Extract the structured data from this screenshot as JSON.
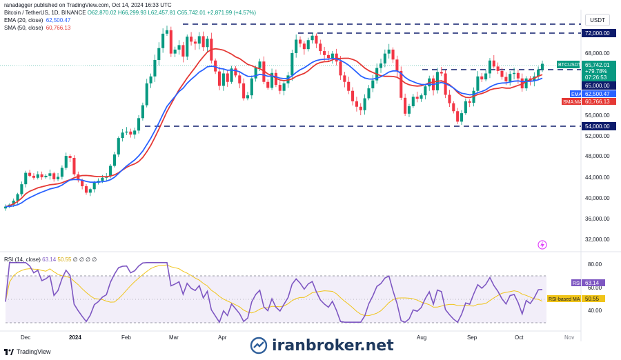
{
  "header": {
    "published": "ranadagger published on TradingView.com, Oct 14, 2024 16:33 UTC"
  },
  "legend": {
    "symbol": "Bitcoin / TetherUS, 1D, BINANCE",
    "open": "O62,870.02",
    "high": "H66,299.93",
    "low": "L62,457.81",
    "close": "C65,742.01",
    "change": "+2,871.99 (+4.57%)",
    "ema_label": "EMA (20, close)",
    "ema_value": "62,500.47",
    "sma_label": "SMA (50, close)",
    "sma_value": "60,766.13",
    "rsi_label": "RSI (14, close)",
    "rsi_value": "63.14",
    "rsi_ma_value": "50.55",
    "rsi_zeros": "∅ ∅ ∅ ∅"
  },
  "price_axis": {
    "unit": "USDT",
    "ticks": [
      "72,000.00",
      "68,000.00",
      "65,000.00",
      "60,000.00",
      "56,000.00",
      "54,000.00",
      "52,000.00",
      "48,000.00",
      "44,000.00",
      "40,000.00",
      "36,000.00",
      "32,000.00"
    ]
  },
  "rsi_axis": {
    "ticks": [
      "80.00",
      "60.00",
      "40.00"
    ]
  },
  "badges": {
    "symbol": "BTCUSDT",
    "price": "65,742.01",
    "change": "+79.78%",
    "countdown": "07:26:53",
    "level_65": "65,000.00",
    "ema_tag": "EMA",
    "ema_price": "62,500.47",
    "sma_tag": "SMA:MA",
    "sma_price": "60,766.13",
    "level_72": "72,000.00",
    "level_54": "54,000.00",
    "rsi_tag": "RSI",
    "rsi_val": "63.14",
    "rsima_tag": "RSI-based MA",
    "rsima_val": "50.55"
  },
  "time_axis": [
    "Dec",
    "2024",
    "Feb",
    "Mar",
    "Apr",
    "Aug",
    "Sep",
    "Oct",
    "Nov"
  ],
  "footer": {
    "brand": "TradingView"
  },
  "watermark": {
    "text": "iranbroker.net"
  },
  "colors": {
    "up": "#089981",
    "down": "#f23645",
    "ema": "#2962ff",
    "sma": "#e53935",
    "rsi": "#7e57c2",
    "rsi_ma": "#f0c419",
    "level": "#0d1b6b"
  },
  "chart_data": {
    "type": "candlestick",
    "title": "Bitcoin / TetherUS, 1D, BINANCE",
    "ylim": [
      30000,
      76000
    ],
    "levels": [
      72000,
      65000,
      54000
    ],
    "close_series": [
      37000,
      37400,
      38200,
      39500,
      41500,
      43800,
      43200,
      42800,
      43500,
      42900,
      43200,
      43700,
      42500,
      43000,
      44800,
      47200,
      46800,
      43500,
      42300,
      41100,
      39800,
      40500,
      41800,
      42200,
      42800,
      43100,
      45200,
      47500,
      50800,
      51900,
      52100,
      51500,
      52300,
      54800,
      57400,
      61800,
      63200,
      66500,
      68900,
      71800,
      72500,
      67800,
      68600,
      69500,
      67200,
      71200,
      70200,
      69800,
      71300,
      69100,
      70800,
      66400,
      64200,
      61300,
      63800,
      62100,
      64800,
      63400,
      61800,
      58800,
      59400,
      62800,
      64900,
      66200,
      62100,
      60900,
      63900,
      61500,
      60300,
      61800,
      63400,
      67900,
      70600,
      69800,
      68700,
      70500,
      71400,
      69800,
      68300,
      67500,
      66900,
      67800,
      66200,
      63400,
      62100,
      60300,
      58200,
      57100,
      56400,
      58800,
      60800,
      62400,
      64900,
      65800,
      67800,
      68600,
      66600,
      64300,
      58900,
      55700,
      57200,
      59100,
      58700,
      59400,
      61200,
      62800,
      60400,
      64100,
      63800,
      59500,
      57800,
      56200,
      54100,
      55800,
      58200,
      57900,
      60300,
      63200,
      62600,
      63800,
      66400,
      65200,
      64300,
      63100,
      62200,
      63700,
      63900,
      62800,
      60800,
      62800,
      62300,
      63200,
      64600,
      65742
    ],
    "ema20_end": 62500.47,
    "sma50_end": 60766.13,
    "rsi": {
      "ylim": [
        20,
        100
      ],
      "upper_band": 70,
      "lower_band": 30,
      "last": 63.14,
      "ma_last": 50.55
    },
    "x_labels": [
      "Dec",
      "2024",
      "Feb",
      "Mar",
      "Apr",
      "Aug",
      "Sep",
      "Oct",
      "Nov"
    ]
  }
}
